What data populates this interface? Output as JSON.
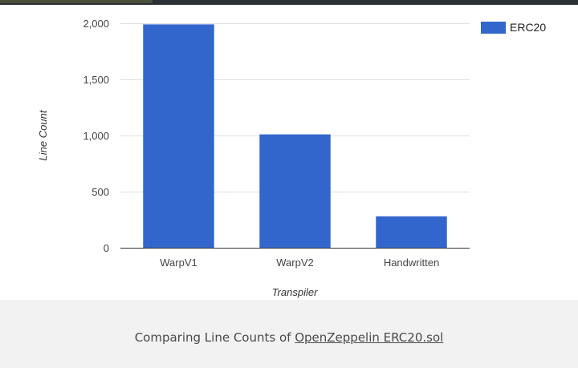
{
  "chart_data": {
    "type": "bar",
    "categories": [
      "WarpV1",
      "WarpV2",
      "Handwritten"
    ],
    "series": [
      {
        "name": "ERC20",
        "values": [
          1990,
          1010,
          280
        ],
        "color": "#3366cc"
      }
    ],
    "xlabel": "Transpiler",
    "ylabel": "Line Count",
    "ylim": [
      0,
      2000
    ],
    "yticks": [
      0,
      500,
      1000,
      1500,
      2000
    ],
    "ytick_labels": [
      "0",
      "500",
      "1,000",
      "1,500",
      "2,000"
    ],
    "grid": true,
    "legend_position": "top-right"
  },
  "caption": {
    "prefix": "Comparing Line Counts of ",
    "link_text": "OpenZeppelin ERC20.sol"
  },
  "colors": {
    "bar": "#3366cc",
    "grid": "#e0e0e0",
    "footer_bg": "#f2f2f2"
  }
}
